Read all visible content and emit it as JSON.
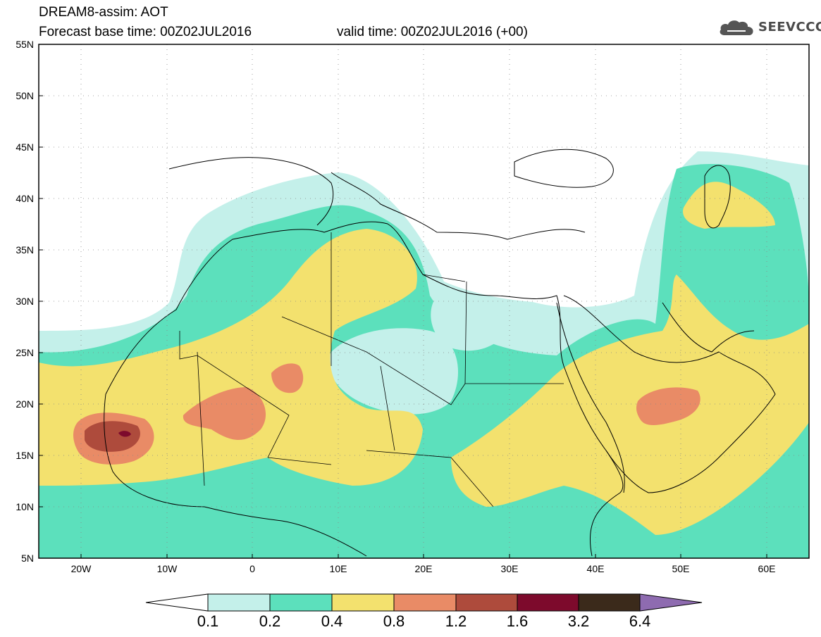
{
  "header": {
    "title": "DREAM8-assim: AOT",
    "base_time": "Forecast base time: 00Z02JUL2016",
    "valid_time": "valid time: 00Z02JUL2016 (+00)",
    "logo_text": "SEEVCCC"
  },
  "axes": {
    "lat_labels": [
      "55N",
      "50N",
      "45N",
      "40N",
      "35N",
      "30N",
      "25N",
      "20N",
      "15N",
      "10N",
      "5N"
    ],
    "lon_labels": [
      "20W",
      "10W",
      "0",
      "10E",
      "20E",
      "30E",
      "40E",
      "50E",
      "60E"
    ]
  },
  "legend": {
    "labels": [
      "0.1",
      "0.2",
      "0.4",
      "0.8",
      "1.2",
      "1.6",
      "3.2",
      "6.4"
    ],
    "colors": [
      "#c4f0ea",
      "#5ce0bc",
      "#f3e16e",
      "#e98b66",
      "#ae4b3c",
      "#7d0a2c",
      "#3b2a1b",
      "#8e6bb0"
    ]
  },
  "colors": {
    "aot_0_1": "#c4f0ea",
    "aot_0_2": "#5ce0bc",
    "aot_0_4": "#f3e16e",
    "aot_0_8": "#e98b66",
    "aot_1_2": "#ae4b3c",
    "aot_1_6": "#7d0a2c",
    "aot_3_2": "#3b2a1b",
    "aot_6_4": "#8e6bb0"
  }
}
